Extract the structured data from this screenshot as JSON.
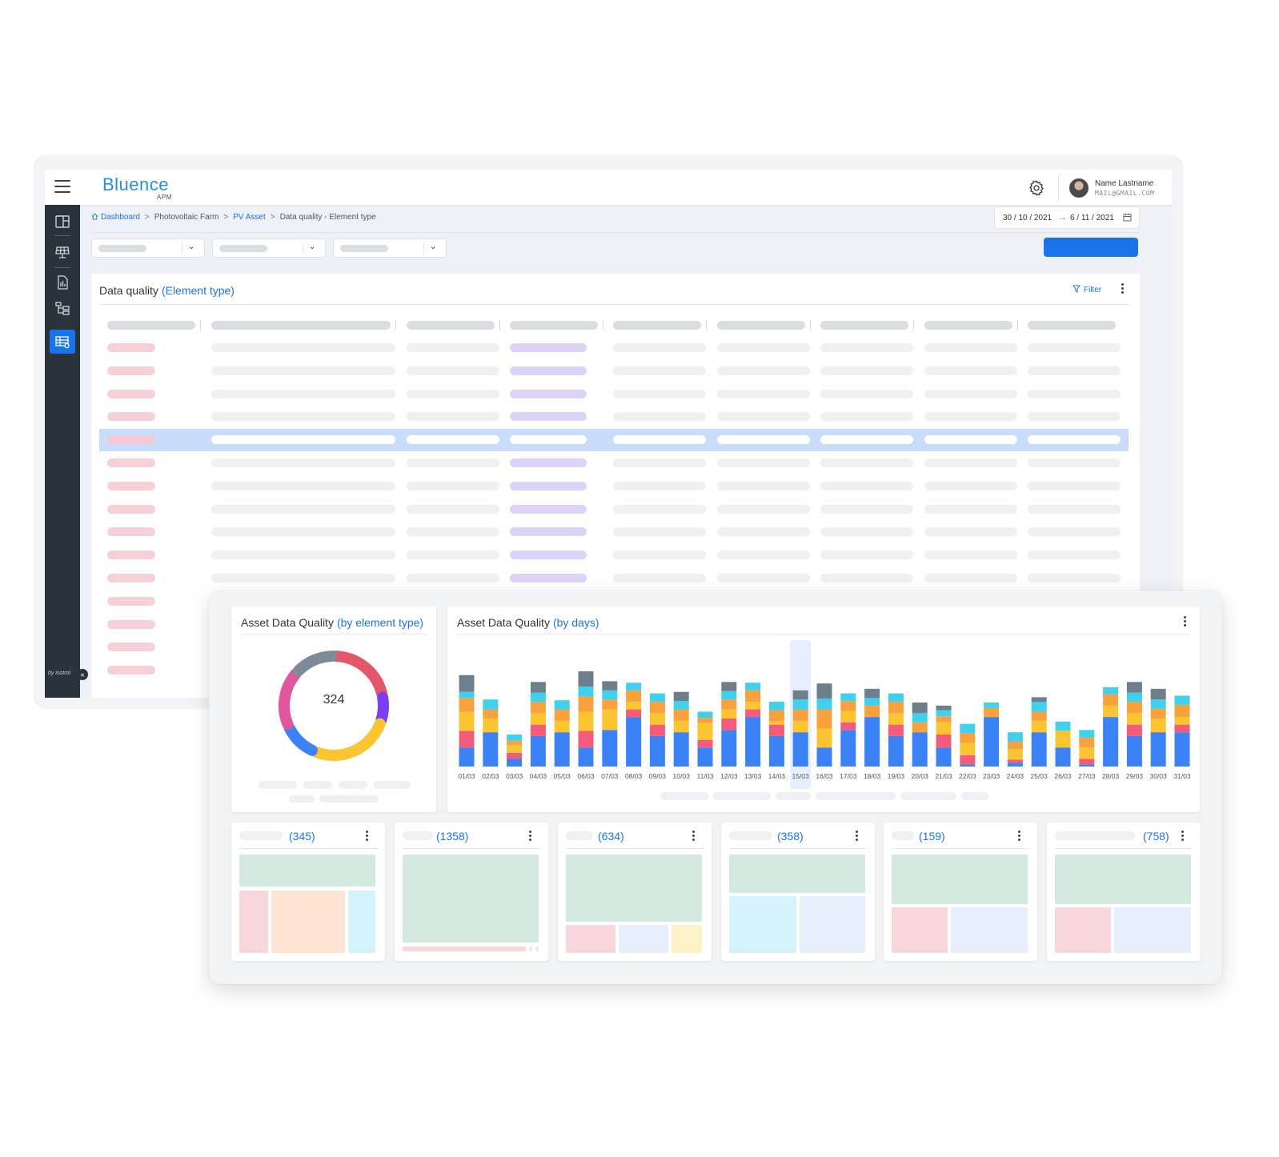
{
  "app": {
    "logo": "Bluence",
    "logo_sub": "APM",
    "user": {
      "name": "Name Lastname",
      "email": "MAIL@GMAIL.COM"
    },
    "sidebar_brand": "by isotrol"
  },
  "breadcrumb": {
    "items": [
      "Dashboard",
      "Photovoltaic Farm",
      "PV Asset",
      "Data quality - Element type"
    ],
    "separator": ">"
  },
  "date_range": {
    "from": "30 / 10 / 2021",
    "to": "6 / 11 / 2021"
  },
  "table_card": {
    "title": "Data quality",
    "title_accent": "(Element type)",
    "filter_label": "Filter"
  },
  "donut_card": {
    "title": "Asset Data Quality",
    "title_accent": "(by element type)",
    "total": "324"
  },
  "bar_card": {
    "title": "Asset Data Quality",
    "title_accent": "(by days)",
    "highlighted_day": "15/03"
  },
  "mini_cards": [
    {
      "count": "(345)"
    },
    {
      "count": "(1358)"
    },
    {
      "count": "(634)"
    },
    {
      "count": "(358)"
    },
    {
      "count": "(159)"
    },
    {
      "count": "(758)"
    }
  ],
  "colors": {
    "primary": "#1a73e8",
    "sidebar": "#2a333b",
    "row_highlight": "#c9dcfa"
  },
  "chart_data": [
    {
      "type": "pie",
      "title": "Asset Data Quality (by element type)",
      "center_label": "324",
      "segment_colors": [
        "#e2576a",
        "#7b3ff2",
        "#fbc531",
        "#3b82f6",
        "#e0559b",
        "#7d8b97"
      ],
      "values": [
        70,
        28,
        85,
        38,
        60,
        43
      ]
    },
    {
      "type": "bar",
      "stacked": true,
      "title": "Asset Data Quality (by days)",
      "categories": [
        "01/03",
        "02/03",
        "03/03",
        "04/03",
        "05/03",
        "06/03",
        "07/03",
        "08/03",
        "09/03",
        "10/03",
        "11/03",
        "12/03",
        "13/03",
        "14/03",
        "15/03",
        "16/03",
        "17/03",
        "18/03",
        "19/03",
        "20/03",
        "21/03",
        "22/03",
        "23/03",
        "24/03",
        "25/03",
        "26/03",
        "27/03",
        "28/03",
        "29/03",
        "30/03",
        "31/03"
      ],
      "series": [
        {
          "color": "#3b82f6",
          "values": [
            25,
            45,
            10,
            40,
            45,
            25,
            48,
            65,
            40,
            45,
            25,
            48,
            65,
            40,
            45,
            25,
            48,
            65,
            40,
            45,
            25,
            3,
            65,
            5,
            45,
            25,
            3,
            65,
            40,
            45,
            45
          ]
        },
        {
          "color": "#f45b7a",
          "values": [
            22,
            0,
            8,
            15,
            0,
            22,
            0,
            10,
            15,
            0,
            10,
            15,
            10,
            15,
            0,
            0,
            10,
            0,
            15,
            0,
            17,
            12,
            0,
            4,
            0,
            0,
            7,
            0,
            15,
            0,
            10
          ]
        },
        {
          "color": "#fbc531",
          "values": [
            25,
            18,
            10,
            15,
            15,
            25,
            27,
            10,
            15,
            15,
            22,
            12,
            10,
            4,
            15,
            25,
            15,
            0,
            15,
            0,
            16,
            16,
            0,
            14,
            15,
            22,
            15,
            15,
            15,
            18,
            10
          ]
        },
        {
          "color": "#f9a13c",
          "values": [
            18,
            12,
            6,
            15,
            15,
            20,
            13,
            15,
            15,
            15,
            7,
            13,
            15,
            15,
            15,
            25,
            13,
            15,
            15,
            13,
            8,
            13,
            12,
            10,
            12,
            0,
            13,
            15,
            15,
            13,
            16
          ]
        },
        {
          "color": "#3fd0ee",
          "values": [
            8,
            13,
            8,
            12,
            12,
            13,
            12,
            10,
            11,
            11,
            8,
            11,
            10,
            11,
            13,
            14,
            10,
            10,
            11,
            12,
            8,
            12,
            7,
            12,
            13,
            12,
            10,
            9,
            12,
            12,
            12
          ]
        },
        {
          "color": "#6e7f8c",
          "values": [
            22,
            0,
            0,
            14,
            0,
            20,
            12,
            0,
            0,
            12,
            0,
            12,
            0,
            0,
            12,
            20,
            0,
            12,
            0,
            14,
            6,
            0,
            0,
            0,
            6,
            0,
            0,
            0,
            14,
            14,
            0
          ]
        }
      ],
      "ylim": [
        0,
        125
      ]
    }
  ]
}
